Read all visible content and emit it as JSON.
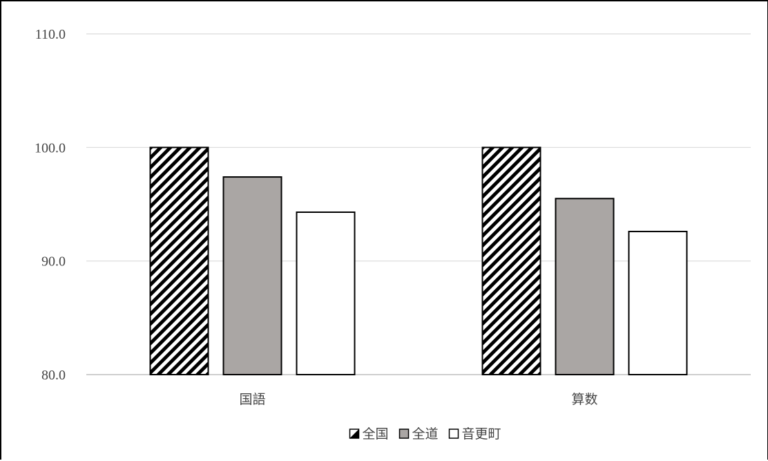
{
  "chart_data": {
    "type": "bar",
    "categories": [
      "国語",
      "算数"
    ],
    "series": [
      {
        "name": "全国",
        "values": [
          100.0,
          100.0
        ],
        "fill": "hatch"
      },
      {
        "name": "全道",
        "values": [
          97.4,
          95.5
        ],
        "fill": "#aaa6a4"
      },
      {
        "name": "音更町",
        "values": [
          94.3,
          92.6
        ],
        "fill": "#ffffff"
      }
    ],
    "ylim": [
      80.0,
      110.0
    ],
    "yticks": [
      "110.0",
      "100.0",
      "90.0",
      "80.0"
    ],
    "grid": true,
    "legend": "bottom-center",
    "title": "",
    "xlabel": "",
    "ylabel": ""
  }
}
